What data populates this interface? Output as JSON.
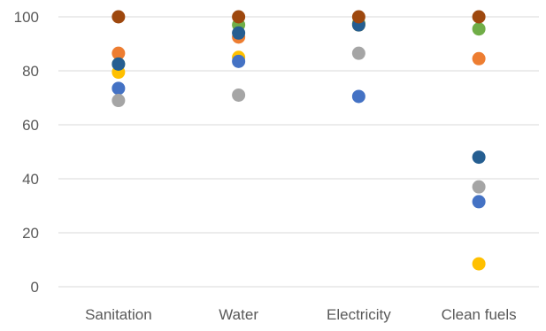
{
  "chart_data": {
    "type": "scatter",
    "title": "",
    "xlabel": "",
    "ylabel": "",
    "categories": [
      "Sanitation",
      "Water",
      "Electricity",
      "Clean fuels"
    ],
    "ylim": [
      0,
      100
    ],
    "yticks": [
      0,
      20,
      40,
      60,
      80,
      100
    ],
    "grid": "horizontal",
    "legend": "none",
    "series": [
      {
        "color": "#FFC000",
        "values": [
          79.5,
          85,
          97,
          8.5
        ]
      },
      {
        "color": "#4472C4",
        "values": [
          73.5,
          83.5,
          70.5,
          31.5
        ]
      },
      {
        "color": "#A5A5A5",
        "values": [
          69,
          71,
          86.5,
          37
        ]
      },
      {
        "color": "#ED7D31",
        "values": [
          86.5,
          92.5,
          97.5,
          84.5
        ]
      },
      {
        "color": "#70AD47",
        "values": [
          82.5,
          97,
          97.5,
          95.5
        ]
      },
      {
        "color": "#255E91",
        "values": [
          82.5,
          94,
          97,
          48
        ]
      },
      {
        "color": "#9E480E",
        "values": [
          100,
          100,
          100,
          100
        ]
      }
    ]
  }
}
